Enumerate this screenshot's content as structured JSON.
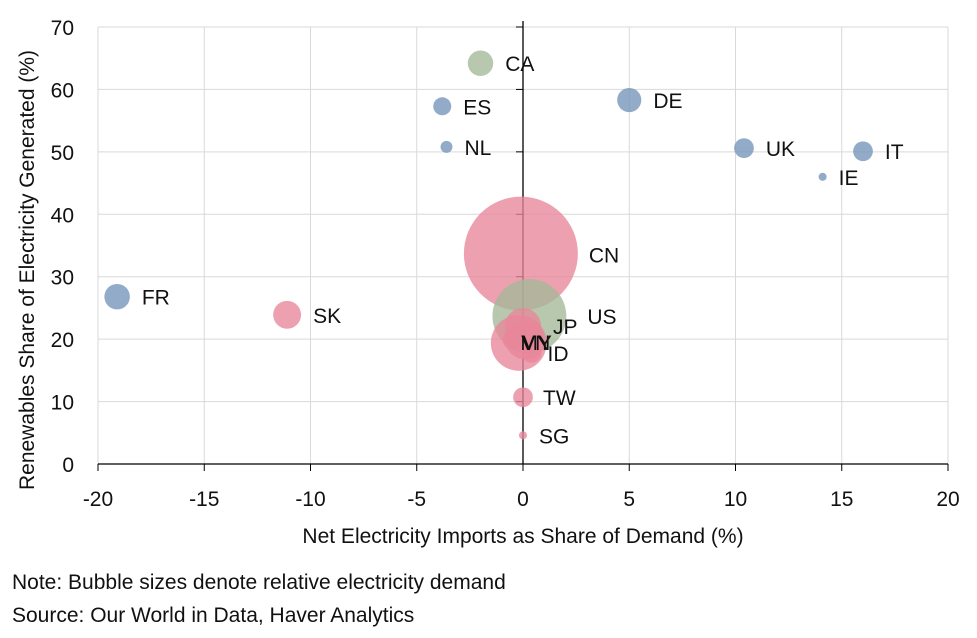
{
  "chart_data": {
    "type": "scatter",
    "subtype": "bubble",
    "title": "",
    "xlabel": "Net Electricity Imports as Share of Demand (%)",
    "ylabel": "Renewables Share of Electricity Generated (%)",
    "xlim": [
      -20,
      20
    ],
    "ylim": [
      0,
      70
    ],
    "xticks": [
      -20,
      -15,
      -10,
      -5,
      0,
      5,
      10,
      15,
      20
    ],
    "yticks": [
      0,
      10,
      20,
      30,
      40,
      50,
      60,
      70
    ],
    "grid": true,
    "legend": "none",
    "colors": {
      "europe": "#7393b9",
      "americas": "#a3b898",
      "asia": "#e8879a"
    },
    "points": [
      {
        "label": "CN",
        "x": -0.1,
        "y": 33.7,
        "size": 100,
        "group": "asia"
      },
      {
        "label": "US",
        "x": 0.3,
        "y": 23.7,
        "size": 42,
        "group": "americas"
      },
      {
        "label": "IN",
        "x": -0.2,
        "y": 19.4,
        "size": 24,
        "group": "asia"
      },
      {
        "label": "VN",
        "x": 0.1,
        "y": 19.9,
        "size": 12,
        "group": "asia"
      },
      {
        "label": "JP",
        "x": 0.0,
        "y": 22.1,
        "size": 10,
        "group": "asia"
      },
      {
        "label": "SK",
        "x": -11.1,
        "y": 23.9,
        "size": 6,
        "group": "asia"
      },
      {
        "label": "FR",
        "x": -19.1,
        "y": 26.8,
        "size": 5,
        "group": "europe"
      },
      {
        "label": "CA",
        "x": -2.0,
        "y": 64.2,
        "size": 5,
        "group": "americas"
      },
      {
        "label": "DE",
        "x": 5.0,
        "y": 58.3,
        "size": 4.5,
        "group": "europe"
      },
      {
        "label": "UK",
        "x": 10.4,
        "y": 50.6,
        "size": 3,
        "group": "europe"
      },
      {
        "label": "IT",
        "x": 16.0,
        "y": 50.1,
        "size": 3,
        "group": "europe"
      },
      {
        "label": "ID",
        "x": 0.4,
        "y": 17.8,
        "size": 3,
        "group": "asia"
      },
      {
        "label": "TW",
        "x": 0.0,
        "y": 10.7,
        "size": 3,
        "group": "asia"
      },
      {
        "label": "MY",
        "x": -0.5,
        "y": 19.9,
        "size": 3,
        "group": "asia"
      },
      {
        "label": "ES",
        "x": -3.8,
        "y": 57.3,
        "size": 2.5,
        "group": "europe"
      },
      {
        "label": "NL",
        "x": -3.6,
        "y": 50.8,
        "size": 1.1,
        "group": "europe"
      },
      {
        "label": "IE",
        "x": 14.1,
        "y": 46.0,
        "size": 0.5,
        "group": "europe"
      },
      {
        "label": "SG",
        "x": 0.0,
        "y": 4.6,
        "size": 0.5,
        "group": "asia"
      }
    ]
  },
  "notes": {
    "note": "Note: Bubble sizes denote relative electricity demand",
    "source": "Source: Our World in Data, Haver Analytics"
  }
}
